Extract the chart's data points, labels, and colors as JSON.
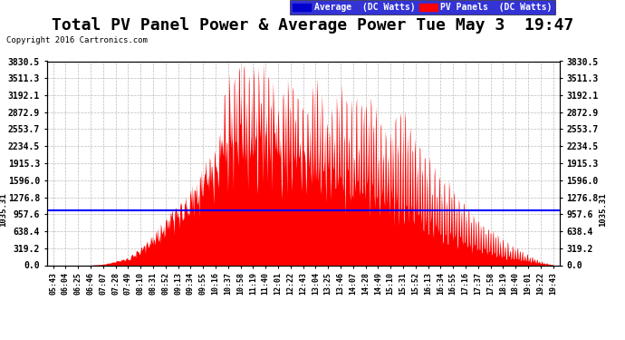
{
  "title": "Total PV Panel Power & Average Power Tue May 3  19:47",
  "copyright": "Copyright 2016 Cartronics.com",
  "average_value": 1035.31,
  "yticks": [
    0.0,
    319.2,
    638.4,
    957.6,
    1276.8,
    1596.0,
    1915.3,
    2234.5,
    2553.7,
    2872.9,
    3192.1,
    3511.3,
    3830.5
  ],
  "ytick_labels": [
    "0.0",
    "319.2",
    "638.4",
    "957.6",
    "1276.8",
    "1596.0",
    "1915.3",
    "2234.5",
    "2553.7",
    "2872.9",
    "3192.1",
    "3511.3",
    "3830.5"
  ],
  "xtick_labels": [
    "05:43",
    "06:04",
    "06:25",
    "06:46",
    "07:07",
    "07:28",
    "07:49",
    "08:10",
    "08:31",
    "08:52",
    "09:13",
    "09:34",
    "09:55",
    "10:16",
    "10:37",
    "10:58",
    "11:19",
    "11:40",
    "12:01",
    "12:22",
    "12:43",
    "13:04",
    "13:25",
    "13:46",
    "14:07",
    "14:28",
    "14:49",
    "15:10",
    "15:31",
    "15:52",
    "16:13",
    "16:34",
    "16:55",
    "17:16",
    "17:37",
    "17:58",
    "18:19",
    "18:40",
    "19:01",
    "19:22",
    "19:43"
  ],
  "avg_line_color": "#0000FF",
  "pv_fill_color": "#FF0000",
  "bg_color": "#FFFFFF",
  "grid_color": "#BBBBBB",
  "title_fontsize": 13,
  "legend_avg_color": "#0000CC",
  "legend_pv_color": "#FF0000",
  "ymax": 3830.5,
  "ymin": 0.0,
  "pv_power": [
    0,
    0,
    0,
    0,
    20,
    80,
    150,
    350,
    600,
    900,
    1200,
    1500,
    1900,
    2300,
    3830,
    3830,
    3750,
    3830,
    3200,
    3830,
    3000,
    3830,
    2800,
    3600,
    3100,
    3400,
    2900,
    2600,
    3200,
    2400,
    2100,
    1800,
    1500,
    1200,
    900,
    700,
    500,
    350,
    200,
    80,
    10
  ],
  "pv_base": [
    0,
    0,
    0,
    0,
    20,
    80,
    150,
    350,
    600,
    900,
    1200,
    1500,
    1900,
    2300,
    2600,
    2800,
    2700,
    2600,
    2500,
    2400,
    2300,
    2200,
    2000,
    1900,
    1800,
    1700,
    1600,
    1500,
    1400,
    1200,
    1000,
    800,
    650,
    500,
    380,
    280,
    200,
    150,
    100,
    50,
    10
  ]
}
